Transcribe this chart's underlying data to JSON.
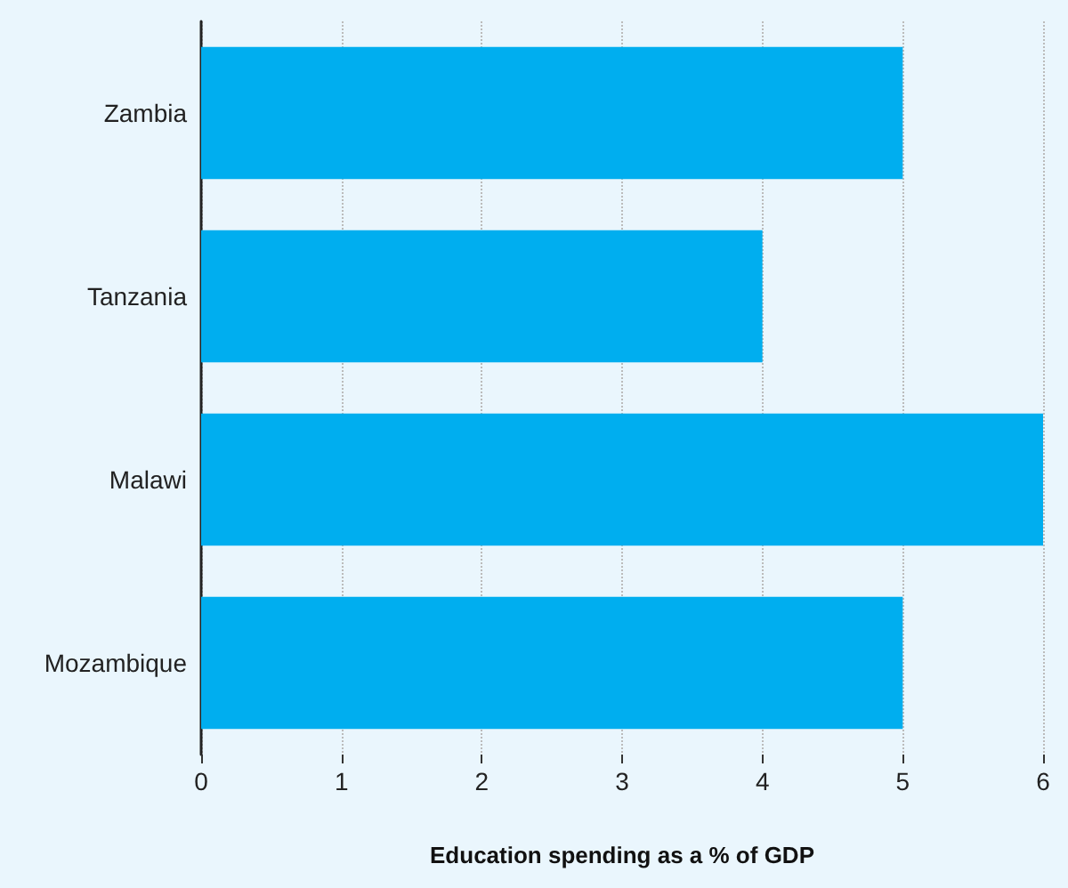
{
  "chart_data": {
    "type": "bar",
    "orientation": "horizontal",
    "categories": [
      "Zambia",
      "Tanzania",
      "Malawi",
      "Mozambique"
    ],
    "values": [
      5,
      4,
      6,
      5
    ],
    "color": "#00aeef",
    "xlabel": "Education spending as a % of GDP",
    "xlim": [
      0,
      6
    ],
    "xticks": [
      0,
      1,
      2,
      3,
      4,
      5,
      6
    ],
    "grid": "x"
  }
}
